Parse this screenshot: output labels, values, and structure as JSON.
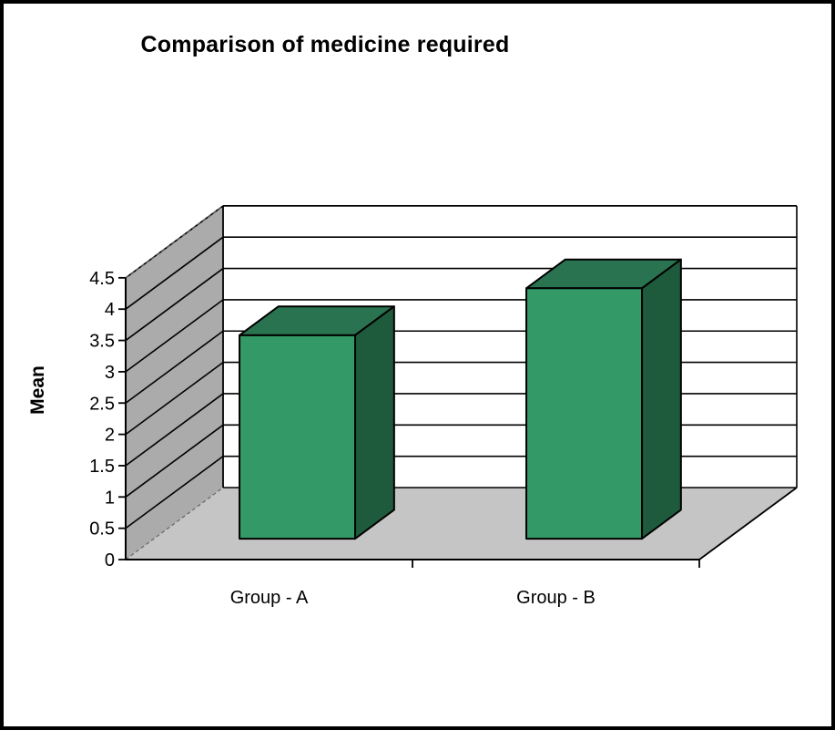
{
  "chart_data": {
    "type": "bar",
    "projection": "3d",
    "title": "Comparison of medicine required",
    "categories": [
      "Group - A",
      "Group - B"
    ],
    "series": [
      {
        "name": "Mean",
        "values": [
          3.25,
          4.0
        ]
      }
    ],
    "xlabel": "",
    "ylabel": "Mean",
    "ylim": [
      0,
      4.5
    ],
    "ytick_step": 0.5,
    "yticks": [
      0,
      0.5,
      1,
      1.5,
      2,
      2.5,
      3,
      3.5,
      4,
      4.5
    ],
    "ytick_labels": [
      "0",
      "0.5",
      "1",
      "1.5",
      "2",
      "2.5",
      "3",
      "3.5",
      "4",
      "4.5"
    ],
    "grid": true,
    "legend": "none",
    "colors": {
      "bar_front": "#339966",
      "bar_side": "#1E5B3C",
      "bar_top": "#2A7350",
      "wall_side": "#ABABAB",
      "wall_back": "#FFFFFF",
      "floor": "#C5C5C5",
      "outline": "#000000",
      "dashed_edge": "#666666",
      "text": "#000000",
      "frame_border": "#000000",
      "background": "#FFFFFF"
    }
  }
}
